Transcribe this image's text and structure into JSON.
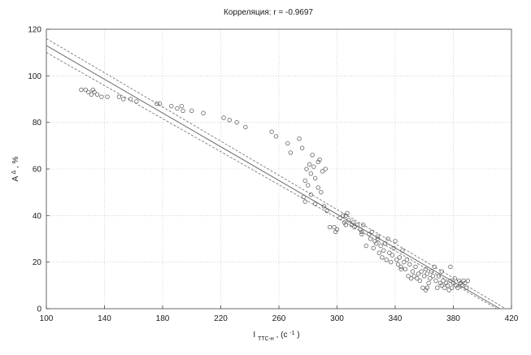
{
  "chart_data": {
    "type": "scatter",
    "title": "Корреляция: r = -0.9697",
    "ylabel_main": "A",
    "ylabel_sup": "Δ",
    "ylabel_suffix": ", %",
    "xlabel_main": "I",
    "xlabel_sub": "ТТС-н",
    "xlabel_suffix": ", (с",
    "xlabel_sup": "-1",
    "xlabel_close": ")",
    "xlim": [
      100,
      420
    ],
    "ylim": [
      0,
      120
    ],
    "xticks": [
      100,
      140,
      180,
      220,
      260,
      300,
      340,
      380,
      420
    ],
    "yticks": [
      0,
      20,
      40,
      60,
      80,
      100,
      120
    ],
    "grid": true,
    "fit": {
      "x": [
        100,
        412
      ],
      "y": [
        113,
        0
      ]
    },
    "ci_upper": {
      "x": [
        100,
        416
      ],
      "y": [
        116,
        0
      ]
    },
    "ci_lower": {
      "x": [
        100,
        410
      ],
      "y": [
        110,
        0
      ]
    },
    "points": [
      [
        124,
        94
      ],
      [
        127,
        94
      ],
      [
        129,
        93
      ],
      [
        131,
        92
      ],
      [
        132,
        94
      ],
      [
        133,
        93
      ],
      [
        135,
        92
      ],
      [
        138,
        91
      ],
      [
        142,
        91
      ],
      [
        150,
        91
      ],
      [
        153,
        90
      ],
      [
        158,
        90
      ],
      [
        162,
        89
      ],
      [
        176,
        88
      ],
      [
        178,
        88
      ],
      [
        186,
        87
      ],
      [
        190,
        86
      ],
      [
        193,
        87
      ],
      [
        194,
        85
      ],
      [
        200,
        85
      ],
      [
        208,
        84
      ],
      [
        222,
        82
      ],
      [
        226,
        81
      ],
      [
        231,
        80
      ],
      [
        237,
        78
      ],
      [
        255,
        76
      ],
      [
        258,
        74
      ],
      [
        266,
        71
      ],
      [
        268,
        67
      ],
      [
        274,
        73
      ],
      [
        276,
        69
      ],
      [
        279,
        60
      ],
      [
        281,
        62
      ],
      [
        282,
        58
      ],
      [
        283,
        66
      ],
      [
        284,
        61
      ],
      [
        285,
        56
      ],
      [
        287,
        63
      ],
      [
        288,
        64
      ],
      [
        290,
        59
      ],
      [
        292,
        60
      ],
      [
        278,
        55
      ],
      [
        280,
        53
      ],
      [
        277,
        48
      ],
      [
        278,
        46
      ],
      [
        282,
        49
      ],
      [
        285,
        45
      ],
      [
        287,
        52
      ],
      [
        289,
        50
      ],
      [
        291,
        44
      ],
      [
        293,
        42
      ],
      [
        295,
        35
      ],
      [
        298,
        35
      ],
      [
        300,
        34
      ],
      [
        302,
        39
      ],
      [
        304,
        40
      ],
      [
        305,
        37
      ],
      [
        306,
        36
      ],
      [
        307,
        41
      ],
      [
        308,
        38
      ],
      [
        310,
        36
      ],
      [
        312,
        35
      ],
      [
        314,
        36
      ],
      [
        316,
        34
      ],
      [
        317,
        33
      ],
      [
        318,
        36
      ],
      [
        320,
        27
      ],
      [
        322,
        32
      ],
      [
        323,
        30
      ],
      [
        324,
        33
      ],
      [
        325,
        26
      ],
      [
        326,
        29
      ],
      [
        327,
        28
      ],
      [
        328,
        31
      ],
      [
        329,
        24
      ],
      [
        330,
        27
      ],
      [
        331,
        22
      ],
      [
        332,
        25
      ],
      [
        333,
        28
      ],
      [
        334,
        21
      ],
      [
        335,
        30
      ],
      [
        336,
        24
      ],
      [
        337,
        20
      ],
      [
        338,
        23
      ],
      [
        339,
        26
      ],
      [
        340,
        29
      ],
      [
        341,
        21
      ],
      [
        342,
        19
      ],
      [
        343,
        22
      ],
      [
        344,
        18
      ],
      [
        345,
        25
      ],
      [
        346,
        20
      ],
      [
        347,
        17
      ],
      [
        348,
        21
      ],
      [
        349,
        14
      ],
      [
        350,
        19
      ],
      [
        351,
        13
      ],
      [
        352,
        16
      ],
      [
        353,
        14
      ],
      [
        354,
        18
      ],
      [
        355,
        13
      ],
      [
        356,
        15
      ],
      [
        357,
        12
      ],
      [
        358,
        16
      ],
      [
        359,
        9
      ],
      [
        360,
        14
      ],
      [
        361,
        17
      ],
      [
        362,
        15
      ],
      [
        363,
        11
      ],
      [
        364,
        13
      ],
      [
        365,
        16
      ],
      [
        366,
        14
      ],
      [
        367,
        18
      ],
      [
        368,
        12
      ],
      [
        369,
        9
      ],
      [
        370,
        14
      ],
      [
        371,
        11
      ],
      [
        372,
        10
      ],
      [
        373,
        12
      ],
      [
        374,
        9
      ],
      [
        375,
        11
      ],
      [
        376,
        10
      ],
      [
        377,
        8
      ],
      [
        378,
        12
      ],
      [
        379,
        9
      ],
      [
        380,
        11
      ],
      [
        381,
        13
      ],
      [
        382,
        10
      ],
      [
        383,
        9
      ],
      [
        384,
        12
      ],
      [
        385,
        11
      ],
      [
        386,
        10
      ],
      [
        387,
        12
      ],
      [
        388,
        11
      ],
      [
        389,
        9
      ],
      [
        390,
        12
      ],
      [
        306,
        40
      ],
      [
        299,
        33
      ],
      [
        311,
        37
      ],
      [
        317,
        32
      ],
      [
        328,
        30
      ],
      [
        344,
        17
      ],
      [
        362,
        9
      ],
      [
        372,
        16
      ],
      [
        378,
        18
      ],
      [
        361,
        8
      ]
    ]
  }
}
